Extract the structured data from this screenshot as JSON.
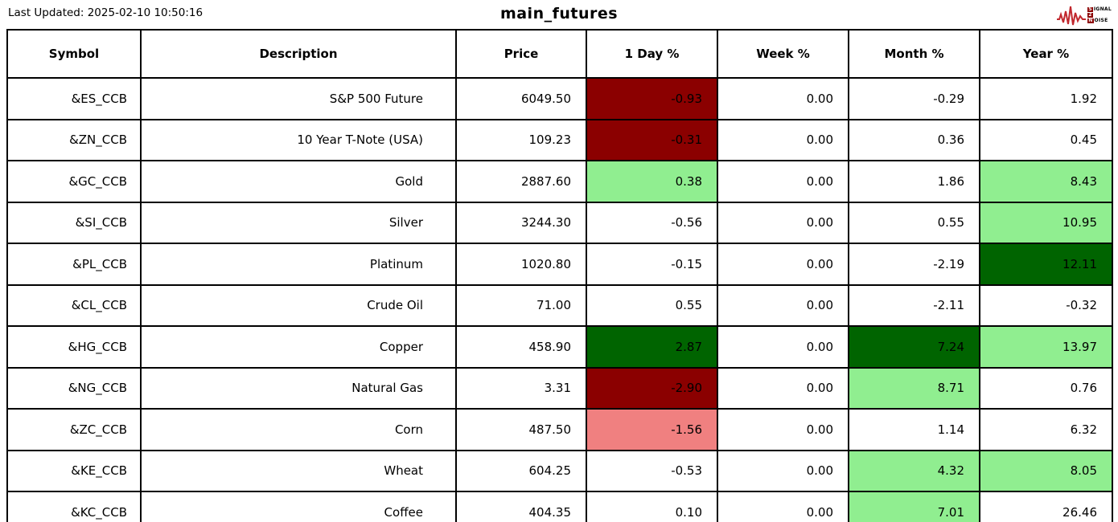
{
  "header": {
    "last_updated": "Last Updated: 2025-02-10 10:50:16",
    "title": "main_futures"
  },
  "logo": {
    "line1_boxed": "S",
    "line1_rest": "IGNAL",
    "line2_boxed": "2",
    "line3_boxed": "N",
    "line3_rest": "OISE",
    "wave_color": "#c1272d",
    "box_color": "#8b0000"
  },
  "palette": {
    "darkred": "#8b0000",
    "lightcoral": "#f08080",
    "lightgreen": "#90ee90",
    "darkgreen": "#006400",
    "white": "#ffffff"
  },
  "table": {
    "columns": [
      "Symbol",
      "Description",
      "Price",
      "1 Day %",
      "Week %",
      "Month %",
      "Year %"
    ],
    "cell_names": [
      "symbol-cell",
      "description-cell",
      "price-cell",
      "day-pct-cell",
      "week-pct-cell",
      "month-pct-cell",
      "year-pct-cell"
    ],
    "rows": [
      {
        "cells": [
          "&ES_CCB",
          "S&P 500 Future",
          "6049.50",
          "-0.93",
          "0.00",
          "-0.29",
          "1.92"
        ],
        "colors": [
          null,
          null,
          null,
          "darkred",
          null,
          null,
          null
        ]
      },
      {
        "cells": [
          "&ZN_CCB",
          "10 Year T-Note (USA)",
          "109.23",
          "-0.31",
          "0.00",
          "0.36",
          "0.45"
        ],
        "colors": [
          null,
          null,
          null,
          "darkred",
          null,
          null,
          null
        ]
      },
      {
        "cells": [
          "&GC_CCB",
          "Gold",
          "2887.60",
          "0.38",
          "0.00",
          "1.86",
          "8.43"
        ],
        "colors": [
          null,
          null,
          null,
          "lightgreen",
          null,
          null,
          "lightgreen"
        ]
      },
      {
        "cells": [
          "&SI_CCB",
          "Silver",
          "3244.30",
          "-0.56",
          "0.00",
          "0.55",
          "10.95"
        ],
        "colors": [
          null,
          null,
          null,
          null,
          null,
          null,
          "lightgreen"
        ]
      },
      {
        "cells": [
          "&PL_CCB",
          "Platinum",
          "1020.80",
          "-0.15",
          "0.00",
          "-2.19",
          "12.11"
        ],
        "colors": [
          null,
          null,
          null,
          null,
          null,
          null,
          "darkgreen"
        ]
      },
      {
        "cells": [
          "&CL_CCB",
          "Crude Oil",
          "71.00",
          "0.55",
          "0.00",
          "-2.11",
          "-0.32"
        ],
        "colors": [
          null,
          null,
          null,
          null,
          null,
          null,
          null
        ]
      },
      {
        "cells": [
          "&HG_CCB",
          "Copper",
          "458.90",
          "2.87",
          "0.00",
          "7.24",
          "13.97"
        ],
        "colors": [
          null,
          null,
          null,
          "darkgreen",
          null,
          "darkgreen",
          "lightgreen"
        ]
      },
      {
        "cells": [
          "&NG_CCB",
          "Natural Gas",
          "3.31",
          "-2.90",
          "0.00",
          "8.71",
          "0.76"
        ],
        "colors": [
          null,
          null,
          null,
          "darkred",
          null,
          "lightgreen",
          null
        ]
      },
      {
        "cells": [
          "&ZC_CCB",
          "Corn",
          "487.50",
          "-1.56",
          "0.00",
          "1.14",
          "6.32"
        ],
        "colors": [
          null,
          null,
          null,
          "lightcoral",
          null,
          null,
          null
        ]
      },
      {
        "cells": [
          "&KE_CCB",
          "Wheat",
          "604.25",
          "-0.53",
          "0.00",
          "4.32",
          "8.05"
        ],
        "colors": [
          null,
          null,
          null,
          null,
          null,
          "lightgreen",
          "lightgreen"
        ]
      },
      {
        "cells": [
          "&KC_CCB",
          "Coffee",
          "404.35",
          "0.10",
          "0.00",
          "7.01",
          "26.46"
        ],
        "colors": [
          null,
          null,
          null,
          null,
          null,
          "lightgreen",
          null
        ]
      }
    ]
  }
}
